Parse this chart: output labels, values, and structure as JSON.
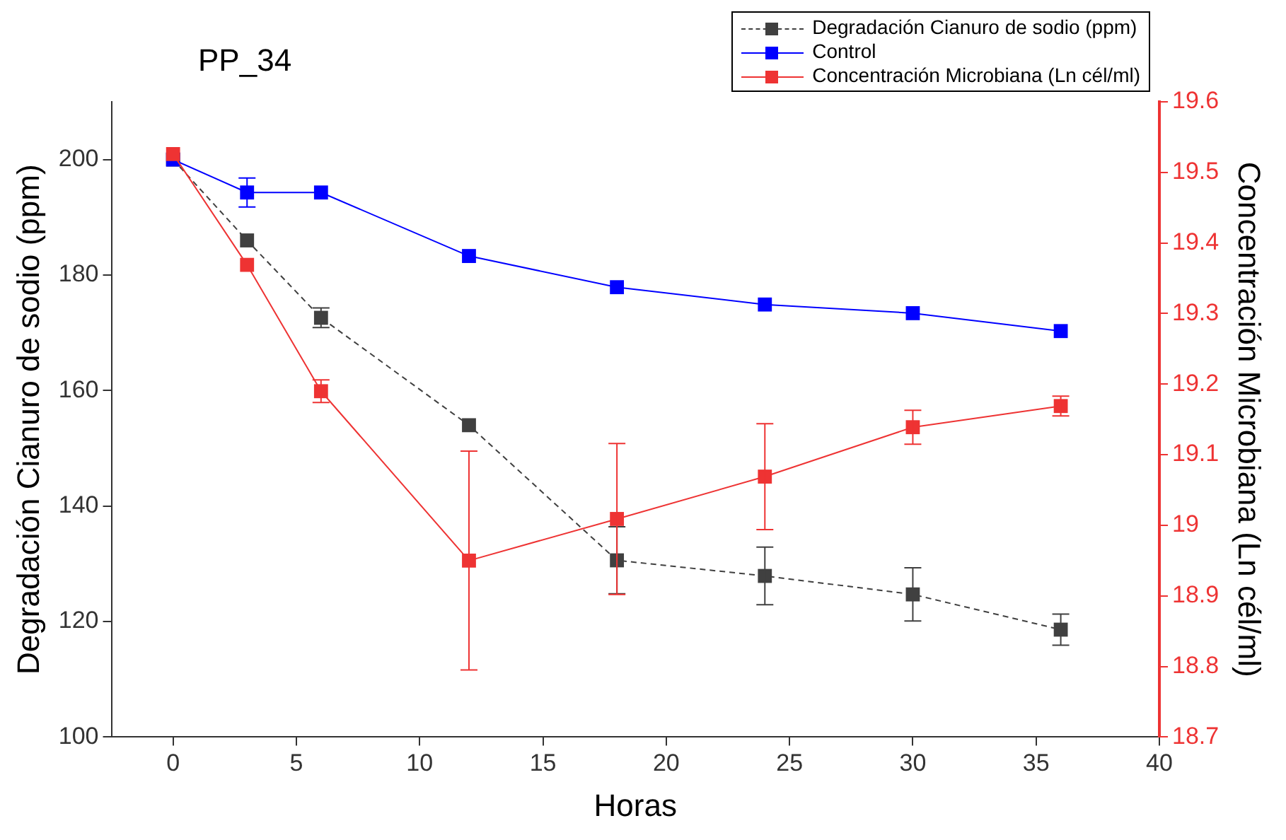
{
  "chart_data": {
    "type": "line",
    "title": "PP_34",
    "xlabel": "Horas",
    "ylabel": "Degradación Cianuro de sodio (ppm)",
    "y2label": "Concentración Microbiana (Ln cél/ml)",
    "x": [
      0,
      3,
      6,
      12,
      18,
      24,
      30,
      36
    ],
    "xlim": [
      -2.5,
      40
    ],
    "xticks": [
      0,
      5,
      10,
      15,
      20,
      25,
      30,
      35,
      40
    ],
    "ylim": [
      100,
      210
    ],
    "yticks": [
      100,
      120,
      140,
      160,
      180,
      200
    ],
    "y2lim": [
      18.7,
      19.6
    ],
    "y2ticks": [
      18.7,
      18.8,
      18.9,
      19.0,
      19.1,
      19.2,
      19.3,
      19.4,
      19.5,
      19.6
    ],
    "grid": false,
    "legend": "top right",
    "marker": "square",
    "series": [
      {
        "name": "Degradación Cianuro de sodio (ppm)",
        "color": "#404040",
        "line_style": "dashed",
        "values": [
          200,
          186.0,
          172.6,
          154.0,
          130.6,
          127.9,
          124.7,
          118.6
        ],
        "errors": [
          null,
          null,
          1.7,
          null,
          5.8,
          5,
          4.6,
          2.7
        ]
      },
      {
        "name": "Control",
        "color": "#0000ff",
        "line_style": "solid",
        "values": [
          200,
          194.3,
          194.3,
          183.3,
          177.9,
          174.9,
          173.4,
          170.3
        ],
        "errors": [
          null,
          2.5,
          null,
          null,
          null,
          null,
          null,
          null
        ]
      },
      {
        "name": "Concentración Microbiana (Ln cél/ml)",
        "color": "#ee3333",
        "line_style": "solid",
        "axis": "y2",
        "values": [
          19.526,
          19.369,
          19.19,
          18.95,
          19.009,
          19.069,
          19.139,
          19.169
        ],
        "errors": [
          null,
          null,
          0.016,
          0.155,
          0.107,
          0.075,
          0.024,
          0.014
        ]
      }
    ]
  }
}
